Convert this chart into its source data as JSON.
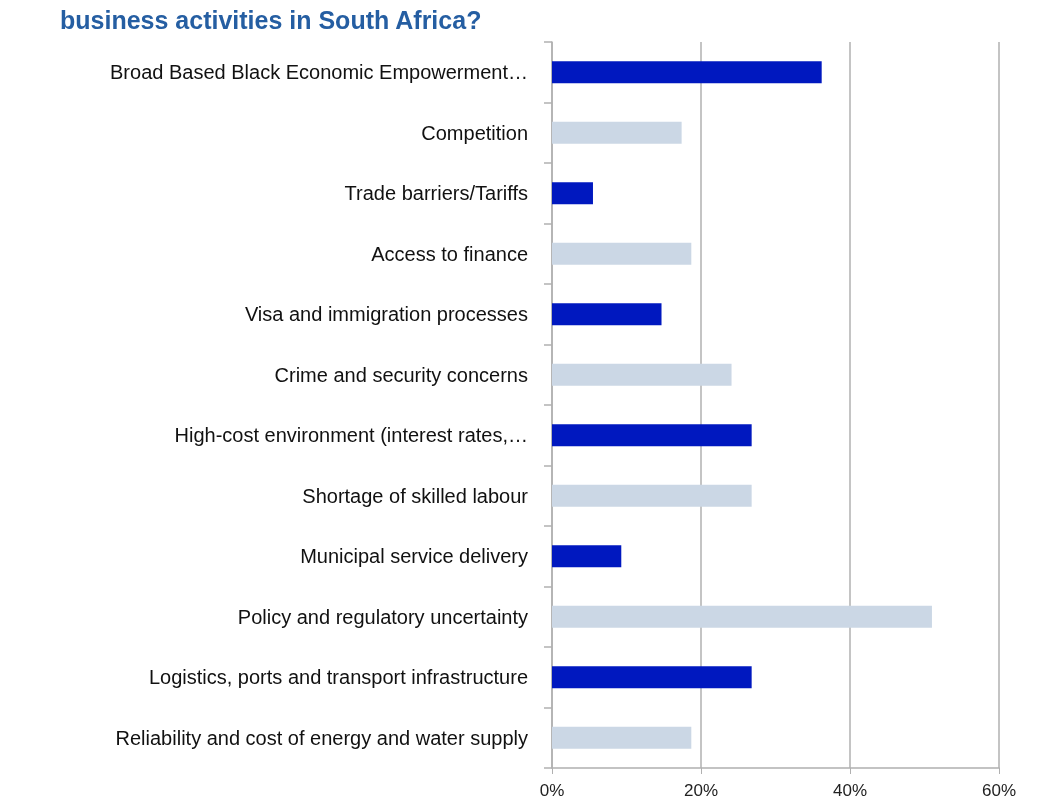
{
  "chart_data": {
    "type": "bar",
    "orientation": "horizontal",
    "title": "business activities in South Africa?",
    "categories": [
      "Broad Based Black Economic Empowerment…",
      "Competition",
      "Trade barriers/Tariffs",
      "Access to finance",
      "Visa and immigration processes",
      "Crime and security concerns",
      "High-cost environment (interest rates,…",
      "Shortage of skilled labour",
      "Municipal service delivery",
      "Policy and regulatory uncertainty",
      "Logistics, ports and transport infrastructure",
      "Reliability and cost of energy and water supply"
    ],
    "values": [
      36.2,
      17.4,
      5.5,
      18.7,
      14.7,
      24.1,
      26.8,
      26.8,
      9.3,
      51,
      26.8,
      18.7
    ],
    "colors": [
      "#0018bf",
      "#cbd7e5",
      "#0018bf",
      "#cbd7e5",
      "#0018bf",
      "#cbd7e5",
      "#0018bf",
      "#cbd7e5",
      "#0018bf",
      "#cbd7e5",
      "#0018bf",
      "#cbd7e5"
    ],
    "xlim": [
      0,
      60
    ],
    "xticks": [
      {
        "value": 0,
        "label": "0%"
      },
      {
        "value": 20,
        "label": "20%"
      },
      {
        "value": 40,
        "label": "40%"
      },
      {
        "value": 60,
        "label": "60%"
      }
    ],
    "grid": "x"
  }
}
